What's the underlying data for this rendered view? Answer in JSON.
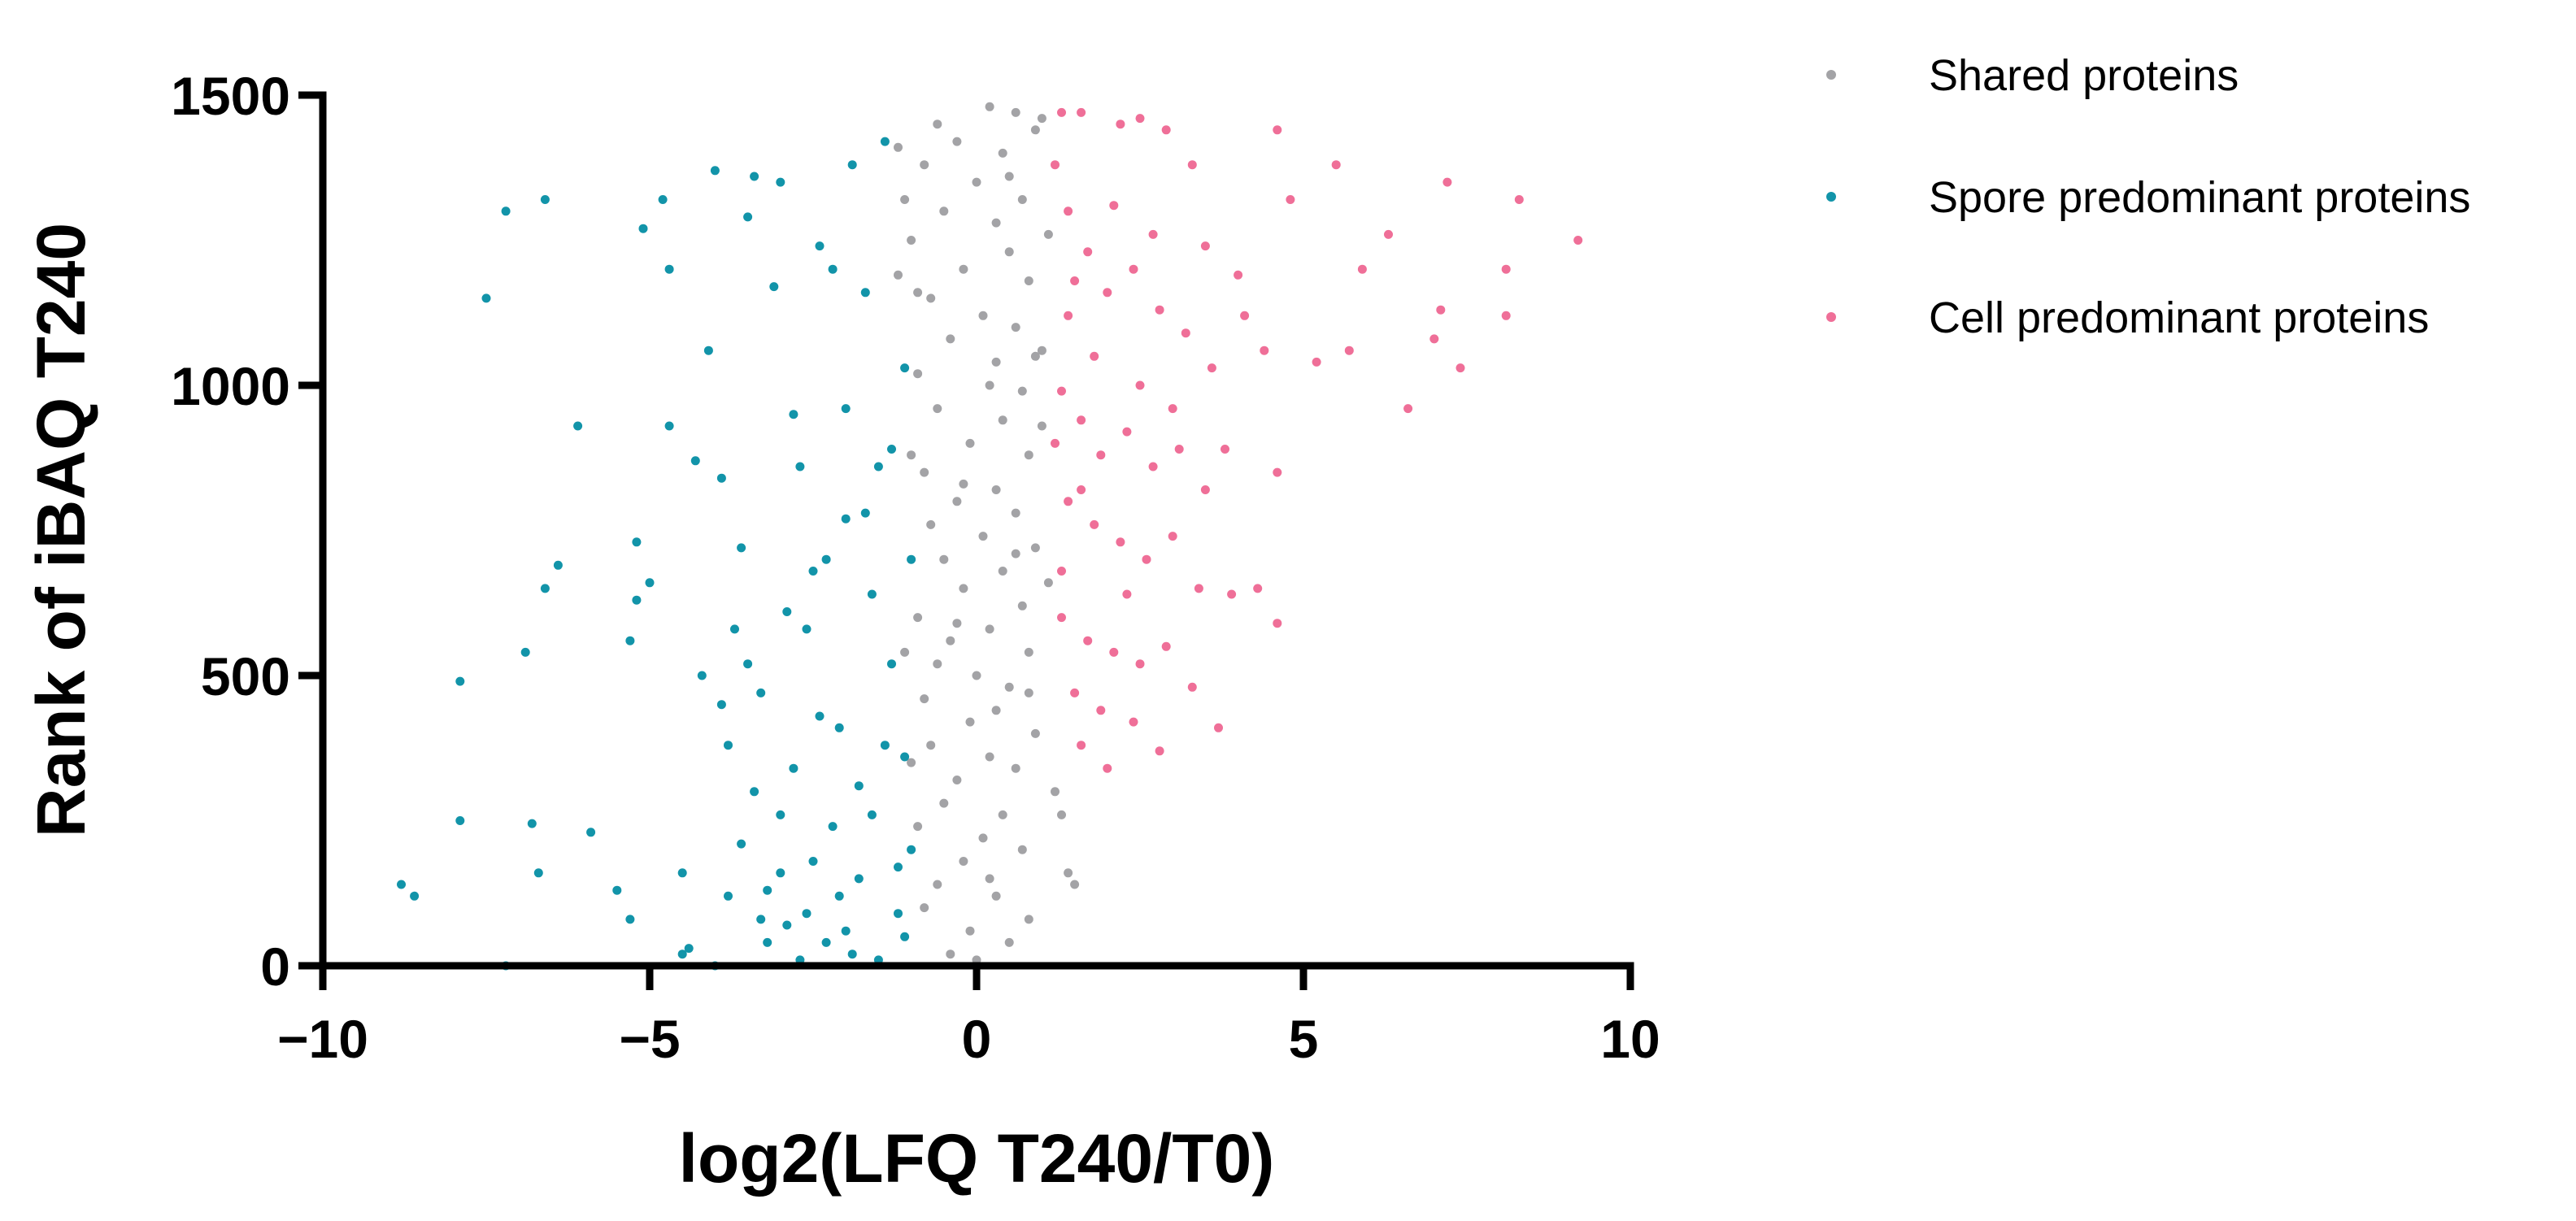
{
  "chart_data": {
    "type": "scatter",
    "title": "",
    "xlabel": "log2(LFQ T240/T0)",
    "ylabel": "Rank of iBAQ T240",
    "xlim": [
      -10,
      10
    ],
    "ylim": [
      0,
      1500
    ],
    "x_ticks": [
      -10,
      -5,
      0,
      5,
      10
    ],
    "x_tick_labels": [
      "−10",
      "−5",
      "0",
      "5",
      "10"
    ],
    "y_ticks": [
      0,
      500,
      1000,
      1500
    ],
    "y_tick_labels": [
      "0",
      "500",
      "1000",
      "1500"
    ],
    "grid": false,
    "legend_position": "right",
    "series": [
      {
        "name": "Shared proteins",
        "color": "#a3a3a6",
        "points": [
          [
            -0.6,
            1450
          ],
          [
            0.2,
            1480
          ],
          [
            0.6,
            1470
          ],
          [
            -0.3,
            1420
          ],
          [
            0.4,
            1400
          ],
          [
            0.9,
            1440
          ],
          [
            -0.8,
            1380
          ],
          [
            0.0,
            1350
          ],
          [
            0.7,
            1320
          ],
          [
            -0.5,
            1300
          ],
          [
            0.3,
            1280
          ],
          [
            -1.0,
            1250
          ],
          [
            0.5,
            1230
          ],
          [
            -0.2,
            1200
          ],
          [
            0.8,
            1180
          ],
          [
            -0.7,
            1150
          ],
          [
            0.1,
            1120
          ],
          [
            0.6,
            1100
          ],
          [
            -0.4,
            1080
          ],
          [
            0.9,
            1050
          ],
          [
            -0.9,
            1020
          ],
          [
            0.2,
            1000
          ],
          [
            0.7,
            990
          ],
          [
            -0.6,
            960
          ],
          [
            0.4,
            940
          ],
          [
            -0.1,
            900
          ],
          [
            0.8,
            880
          ],
          [
            -0.8,
            850
          ],
          [
            0.3,
            820
          ],
          [
            -0.3,
            800
          ],
          [
            0.6,
            780
          ],
          [
            -0.7,
            760
          ],
          [
            0.1,
            740
          ],
          [
            0.9,
            720
          ],
          [
            -0.5,
            700
          ],
          [
            0.4,
            680
          ],
          [
            -0.2,
            650
          ],
          [
            0.7,
            620
          ],
          [
            -0.9,
            600
          ],
          [
            0.2,
            580
          ],
          [
            -0.4,
            560
          ],
          [
            0.8,
            540
          ],
          [
            -0.6,
            520
          ],
          [
            0.0,
            500
          ],
          [
            0.5,
            480
          ],
          [
            -0.8,
            460
          ],
          [
            0.3,
            440
          ],
          [
            -0.1,
            420
          ],
          [
            0.9,
            400
          ],
          [
            -0.7,
            380
          ],
          [
            0.2,
            360
          ],
          [
            0.6,
            340
          ],
          [
            -0.3,
            320
          ],
          [
            1.2,
            300
          ],
          [
            -0.5,
            280
          ],
          [
            0.4,
            260
          ],
          [
            -0.9,
            240
          ],
          [
            0.1,
            220
          ],
          [
            0.7,
            200
          ],
          [
            -0.2,
            180
          ],
          [
            1.4,
            160
          ],
          [
            -0.6,
            140
          ],
          [
            0.3,
            120
          ],
          [
            -0.8,
            100
          ],
          [
            0.8,
            80
          ],
          [
            -0.1,
            60
          ],
          [
            0.5,
            40
          ],
          [
            -0.4,
            20
          ],
          [
            0.0,
            10
          ],
          [
            1.0,
            1460
          ],
          [
            -1.1,
            1320
          ],
          [
            1.1,
            1260
          ],
          [
            -1.2,
            1190
          ],
          [
            1.0,
            1060
          ],
          [
            -1.0,
            880
          ],
          [
            1.1,
            660
          ],
          [
            -1.1,
            540
          ],
          [
            1.3,
            260
          ],
          [
            -1.2,
            1410
          ],
          [
            0.5,
            1360
          ],
          [
            -0.9,
            1160
          ],
          [
            0.3,
            1040
          ],
          [
            1.0,
            930
          ],
          [
            -0.2,
            830
          ],
          [
            0.6,
            710
          ],
          [
            -0.3,
            590
          ],
          [
            0.8,
            470
          ],
          [
            -1.0,
            350
          ],
          [
            0.2,
            150
          ],
          [
            1.5,
            140
          ]
        ]
      },
      {
        "name": "Spore predominant proteins",
        "color": "#1294a9",
        "points": [
          [
            -8.8,
            140
          ],
          [
            -8.6,
            120
          ],
          [
            -7.9,
            490
          ],
          [
            -7.9,
            250
          ],
          [
            -7.5,
            1150
          ],
          [
            -7.2,
            1300
          ],
          [
            -7.2,
            0
          ],
          [
            -6.9,
            540
          ],
          [
            -6.8,
            245
          ],
          [
            -6.7,
            160
          ],
          [
            -6.6,
            1320
          ],
          [
            -6.6,
            650
          ],
          [
            -6.4,
            690
          ],
          [
            -6.1,
            930
          ],
          [
            -5.9,
            230
          ],
          [
            -5.5,
            130
          ],
          [
            -5.3,
            80
          ],
          [
            -5.3,
            560
          ],
          [
            -5.2,
            630
          ],
          [
            -5.2,
            730
          ],
          [
            -5.1,
            1270
          ],
          [
            -5.0,
            660
          ],
          [
            -4.8,
            1320
          ],
          [
            -4.7,
            930
          ],
          [
            -4.7,
            1200
          ],
          [
            -4.5,
            160
          ],
          [
            -4.3,
            870
          ],
          [
            -4.2,
            500
          ],
          [
            -4.1,
            1060
          ],
          [
            -4.0,
            1370
          ],
          [
            -4.0,
            0
          ],
          [
            -3.9,
            840
          ],
          [
            -3.8,
            380
          ],
          [
            -3.7,
            580
          ],
          [
            -3.6,
            720
          ],
          [
            -3.5,
            1290
          ],
          [
            -3.4,
            1360
          ],
          [
            -3.3,
            470
          ],
          [
            -3.2,
            130
          ],
          [
            -3.1,
            1170
          ],
          [
            -3.0,
            260
          ],
          [
            -3.0,
            1350
          ],
          [
            -2.9,
            70
          ],
          [
            -2.8,
            950
          ],
          [
            -2.7,
            860
          ],
          [
            -2.6,
            580
          ],
          [
            -2.5,
            680
          ],
          [
            -2.5,
            180
          ],
          [
            -2.4,
            1240
          ],
          [
            -2.3,
            40
          ],
          [
            -2.2,
            1200
          ],
          [
            -2.1,
            410
          ],
          [
            -2.0,
            960
          ],
          [
            -2.0,
            770
          ],
          [
            -1.9,
            1380
          ],
          [
            -1.8,
            310
          ],
          [
            -1.7,
            1160
          ],
          [
            -1.6,
            640
          ],
          [
            -1.5,
            860
          ],
          [
            -1.4,
            1420
          ],
          [
            -1.3,
            520
          ],
          [
            -1.2,
            90
          ],
          [
            -1.1,
            1030
          ],
          [
            -1.1,
            360
          ],
          [
            -1.0,
            700
          ],
          [
            -1.0,
            200
          ],
          [
            -4.4,
            30
          ],
          [
            -3.8,
            120
          ],
          [
            -3.6,
            210
          ],
          [
            -3.4,
            300
          ],
          [
            -3.2,
            40
          ],
          [
            -3.0,
            160
          ],
          [
            -2.8,
            340
          ],
          [
            -2.6,
            90
          ],
          [
            -2.4,
            430
          ],
          [
            -2.2,
            240
          ],
          [
            -2.0,
            60
          ],
          [
            -1.8,
            150
          ],
          [
            -1.6,
            260
          ],
          [
            -1.4,
            380
          ],
          [
            -1.2,
            170
          ],
          [
            -3.9,
            450
          ],
          [
            -3.5,
            520
          ],
          [
            -2.9,
            610
          ],
          [
            -2.3,
            700
          ],
          [
            -1.7,
            780
          ],
          [
            -1.3,
            890
          ],
          [
            -4.5,
            20
          ],
          [
            -2.7,
            10
          ],
          [
            -1.9,
            20
          ],
          [
            -1.1,
            50
          ],
          [
            -3.3,
            80
          ],
          [
            -2.1,
            120
          ],
          [
            -1.5,
            10
          ]
        ]
      },
      {
        "name": "Cell predominant proteins",
        "color": "#ef6f98",
        "points": [
          [
            1.3,
            1470
          ],
          [
            1.6,
            1470
          ],
          [
            2.2,
            1450
          ],
          [
            2.5,
            1460
          ],
          [
            2.9,
            1440
          ],
          [
            3.3,
            1380
          ],
          [
            4.6,
            1440
          ],
          [
            5.5,
            1380
          ],
          [
            5.9,
            1200
          ],
          [
            6.3,
            1260
          ],
          [
            6.6,
            960
          ],
          [
            7.0,
            1080
          ],
          [
            7.1,
            1130
          ],
          [
            7.2,
            1350
          ],
          [
            7.4,
            1030
          ],
          [
            8.1,
            1200
          ],
          [
            8.1,
            1120
          ],
          [
            8.3,
            1320
          ],
          [
            9.2,
            1250
          ],
          [
            1.4,
            1300
          ],
          [
            1.7,
            1230
          ],
          [
            2.0,
            1160
          ],
          [
            2.4,
            1200
          ],
          [
            2.8,
            1130
          ],
          [
            3.2,
            1090
          ],
          [
            3.6,
            1030
          ],
          [
            4.1,
            1120
          ],
          [
            4.4,
            1060
          ],
          [
            4.8,
            1320
          ],
          [
            5.2,
            1040
          ],
          [
            5.7,
            1060
          ],
          [
            1.3,
            990
          ],
          [
            1.6,
            940
          ],
          [
            1.9,
            880
          ],
          [
            2.3,
            920
          ],
          [
            2.7,
            860
          ],
          [
            3.1,
            890
          ],
          [
            3.5,
            820
          ],
          [
            3.8,
            890
          ],
          [
            4.6,
            850
          ],
          [
            1.4,
            800
          ],
          [
            1.8,
            760
          ],
          [
            2.2,
            730
          ],
          [
            2.6,
            700
          ],
          [
            3.0,
            740
          ],
          [
            3.4,
            650
          ],
          [
            3.9,
            640
          ],
          [
            4.3,
            650
          ],
          [
            4.6,
            590
          ],
          [
            1.3,
            600
          ],
          [
            1.7,
            560
          ],
          [
            2.1,
            540
          ],
          [
            2.5,
            520
          ],
          [
            2.9,
            550
          ],
          [
            3.3,
            480
          ],
          [
            3.7,
            410
          ],
          [
            1.5,
            470
          ],
          [
            1.9,
            440
          ],
          [
            2.4,
            420
          ],
          [
            2.8,
            370
          ],
          [
            1.6,
            380
          ],
          [
            2.0,
            340
          ],
          [
            1.4,
            1120
          ],
          [
            1.8,
            1050
          ],
          [
            2.5,
            1000
          ],
          [
            3.0,
            960
          ],
          [
            1.5,
            1180
          ],
          [
            2.1,
            1310
          ],
          [
            2.7,
            1260
          ],
          [
            3.5,
            1240
          ],
          [
            4.0,
            1190
          ],
          [
            1.3,
            680
          ],
          [
            1.2,
            900
          ],
          [
            1.2,
            1380
          ],
          [
            1.6,
            820
          ],
          [
            2.3,
            640
          ]
        ]
      }
    ]
  }
}
